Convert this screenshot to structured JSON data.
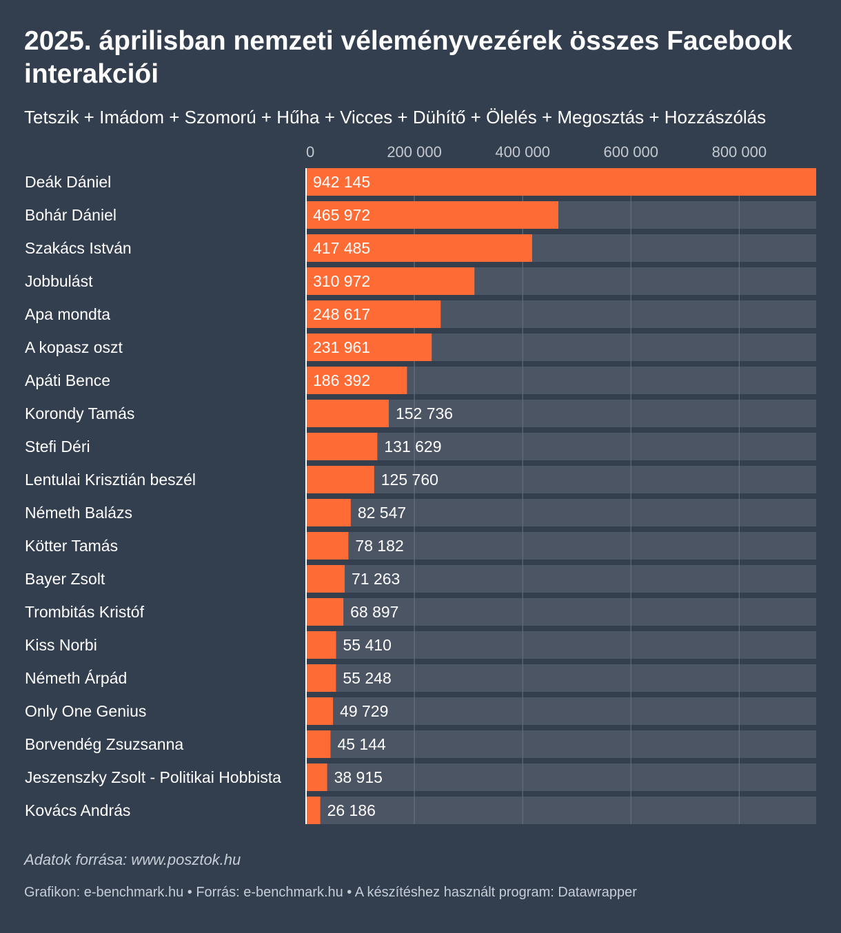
{
  "header": {
    "title": "2025. áprilisban nemzeti véleményvezérek összes Facebook interakciói",
    "subtitle": "Tetszik + Imádom + Szomorú + Hűha + Vicces + Dühítő + Ölelés + Megosztás + Hozzászólás"
  },
  "chart_data": {
    "type": "bar",
    "orientation": "horizontal",
    "title": "2025. áprilisban nemzeti véleményvezérek összes Facebook interakciói",
    "subtitle": "Tetszik + Imádom + Szomorú + Hűha + Vicces + Dühítő + Ölelés + Megosztás + Hozzászólás",
    "xlabel": "",
    "ylabel": "",
    "xlim": [
      0,
      942145
    ],
    "ticks": [
      0,
      200000,
      400000,
      600000,
      800000
    ],
    "tick_labels": [
      "0",
      "200 000",
      "400 000",
      "600 000",
      "800 000"
    ],
    "categories": [
      "Deák Dániel",
      "Bohár Dániel",
      "Szakács István",
      "Jobbulást",
      "Apa mondta",
      "A kopasz oszt",
      "Apáti Bence",
      "Korondy Tamás",
      "Stefi Déri",
      "Lentulai Krisztián beszél",
      "Németh Balázs",
      "Kötter Tamás",
      "Bayer Zsolt",
      "Trombitás Kristóf",
      "Kiss Norbi",
      "Németh Árpád",
      "Only One Genius",
      "Borvendég Zsuzsanna",
      "Jeszenszky Zsolt - Politikai Hobbista",
      "Kovács András"
    ],
    "values": [
      942145,
      465972,
      417485,
      310972,
      248617,
      231961,
      186392,
      152736,
      131629,
      125760,
      82547,
      78182,
      71263,
      68897,
      55410,
      55248,
      49729,
      45144,
      38915,
      26186
    ],
    "value_labels": [
      "942 145",
      "465 972",
      "417 485",
      "310 972",
      "248 617",
      "231 961",
      "186 392",
      "152 736",
      "131 629",
      "125 760",
      "82 547",
      "78 182",
      "71 263",
      "68 897",
      "55 410",
      "55 248",
      "49 729",
      "45 144",
      "38 915",
      "26 186"
    ],
    "grid": true,
    "colors": {
      "bar": "#ff6b35",
      "track": "#4b5564",
      "background": "#333e4f",
      "grid": "#6b7482",
      "tick_text": "#c3c8d0"
    }
  },
  "notes": {
    "source_note": "Adatok forrása: www.posztok.hu",
    "footer": "Grafikon: e-benchmark.hu • Forrás: e-benchmark.hu • A készítéshez használt program: Datawrapper"
  }
}
